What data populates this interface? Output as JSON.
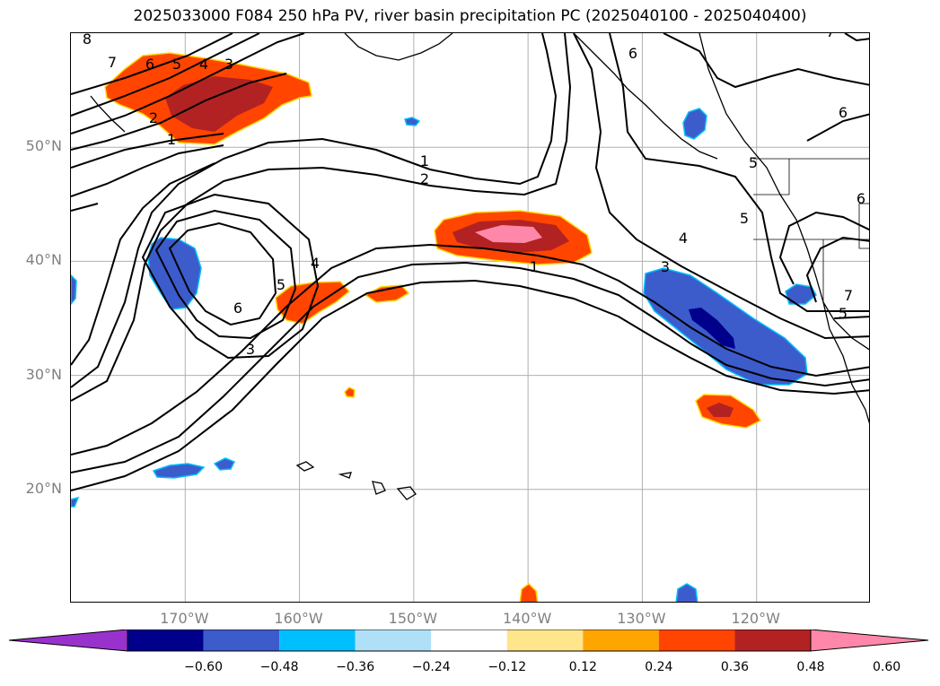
{
  "title": "2025033000 F084 250 hPa PV, river basin precipitation PC (2025040100 - 2025040400)",
  "map": {
    "projection": "PlateCarree",
    "lon_range": [
      -180,
      -110
    ],
    "lat_range": [
      10,
      60
    ],
    "lat_ticks": [
      {
        "value": 50,
        "label": "50°N"
      },
      {
        "value": 40,
        "label": "40°N"
      },
      {
        "value": 30,
        "label": "30°N"
      },
      {
        "value": 20,
        "label": "20°N"
      }
    ],
    "lon_ticks": [
      {
        "value": -170,
        "label": "170°W"
      },
      {
        "value": -160,
        "label": "160°W"
      },
      {
        "value": -150,
        "label": "150°W"
      },
      {
        "value": -140,
        "label": "140°W"
      },
      {
        "value": -130,
        "label": "130°W"
      },
      {
        "value": -120,
        "label": "120°W"
      }
    ],
    "gridlines": true,
    "tick_color": "#808080"
  },
  "colorbar": {
    "levels": [
      "−0.60",
      "−0.48",
      "−0.36",
      "−0.24",
      "−0.12",
      "0.12",
      "0.24",
      "0.36",
      "0.48",
      "0.60"
    ],
    "colors": [
      "#9932cc",
      "#00008b",
      "#3c5ccc",
      "#00bfff",
      "#b0e0f8",
      "#ffffff",
      "#ffe68c",
      "#ffa500",
      "#ff4500",
      "#b22222",
      "#ff88aa"
    ],
    "extend": "both"
  },
  "pv_contour_labels": [
    "8",
    "7",
    "6",
    "5",
    "4",
    "3",
    "2",
    "1",
    "1",
    "2",
    "4",
    "5",
    "6",
    "3",
    "1",
    "3",
    "4",
    "6",
    "5",
    "6",
    "5",
    "7",
    "6",
    "7",
    "5"
  ]
}
